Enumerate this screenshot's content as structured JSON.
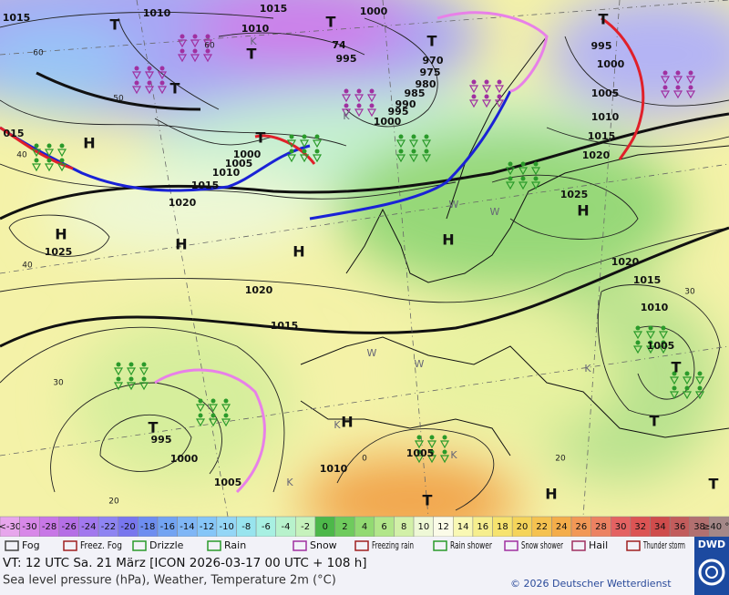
{
  "map": {
    "pressure_labels": [
      "1015",
      "1010",
      "1015",
      "1010",
      "1000",
      "995",
      "74",
      "970",
      "975",
      "980",
      "985",
      "990",
      "995",
      "1000",
      "995",
      "1000",
      "1005",
      "1010",
      "1015",
      "1020",
      "015",
      "1000",
      "1005",
      "1010",
      "1015",
      "1020",
      "1025",
      "1025",
      "1020",
      "1015",
      "1020",
      "1015",
      "1010",
      "1005",
      "995",
      "1000",
      "1005",
      "1010",
      "1005"
    ],
    "temp_labels": [
      "60",
      "50",
      "60",
      "40",
      "40",
      "30",
      "20",
      "30",
      "20",
      "0"
    ],
    "centers": [
      "H",
      "T",
      "T",
      "T",
      "T",
      "T",
      "T",
      "T",
      "H",
      "H",
      "H",
      "H",
      "H",
      "H",
      "T",
      "T",
      "H",
      "T",
      "T",
      "T"
    ],
    "minor_labels": [
      "K",
      "K",
      "W",
      "W",
      "K",
      "W",
      "K",
      "K",
      "W",
      "K"
    ]
  },
  "scale": {
    "labels": [
      "<-30",
      "-30",
      "-28",
      "-26",
      "-24",
      "-22",
      "-20",
      "-18",
      "-16",
      "-14",
      "-12",
      "-10",
      "-8",
      "-6",
      "-4",
      "-2",
      "0",
      "2",
      "4",
      "6",
      "8",
      "10",
      "12",
      "14",
      "16",
      "18",
      "20",
      "22",
      "24",
      "26",
      "28",
      "30",
      "32",
      "34",
      "36",
      "38",
      "≥40 °C"
    ],
    "colors": [
      "#e7a6ec",
      "#d888e8",
      "#c877e6",
      "#b56fe6",
      "#a278ee",
      "#8e84f2",
      "#7876ee",
      "#6d8df0",
      "#72a3f2",
      "#7fb6f6",
      "#86c6f8",
      "#94d6f6",
      "#98e4ee",
      "#a8f0e2",
      "#b8f2cc",
      "#c6f2bc",
      "#4db84a",
      "#6fcb5d",
      "#92da72",
      "#b2e68a",
      "#d2f0a8",
      "#eef8d6",
      "#fbfbe8",
      "#f9f8b4",
      "#f6ee8e",
      "#f6e36e",
      "#f5d45a",
      "#f5c250",
      "#f4ad4a",
      "#f29856",
      "#ec8262",
      "#e46262",
      "#dc5454",
      "#cf4c4c",
      "#c25c5c",
      "#b27070",
      "#a48888"
    ]
  },
  "legend": [
    "Fog",
    "Freez. Fog",
    "Drizzle",
    "Rain",
    "Snow",
    "Freezing rain",
    "Rain shower",
    "Snow shower",
    "Hail",
    "Thunder storm"
  ],
  "footer": {
    "valid": "VT: 12 UTC Sa.  21 März [ICON 2026-03-17  00 UTC + 108 h]",
    "subtitle": "Sea level pressure (hPa), Weather, Temperature 2m (°C)",
    "copyright": "© 2026 Deutscher Wetterdienst",
    "logo": "DWD"
  }
}
